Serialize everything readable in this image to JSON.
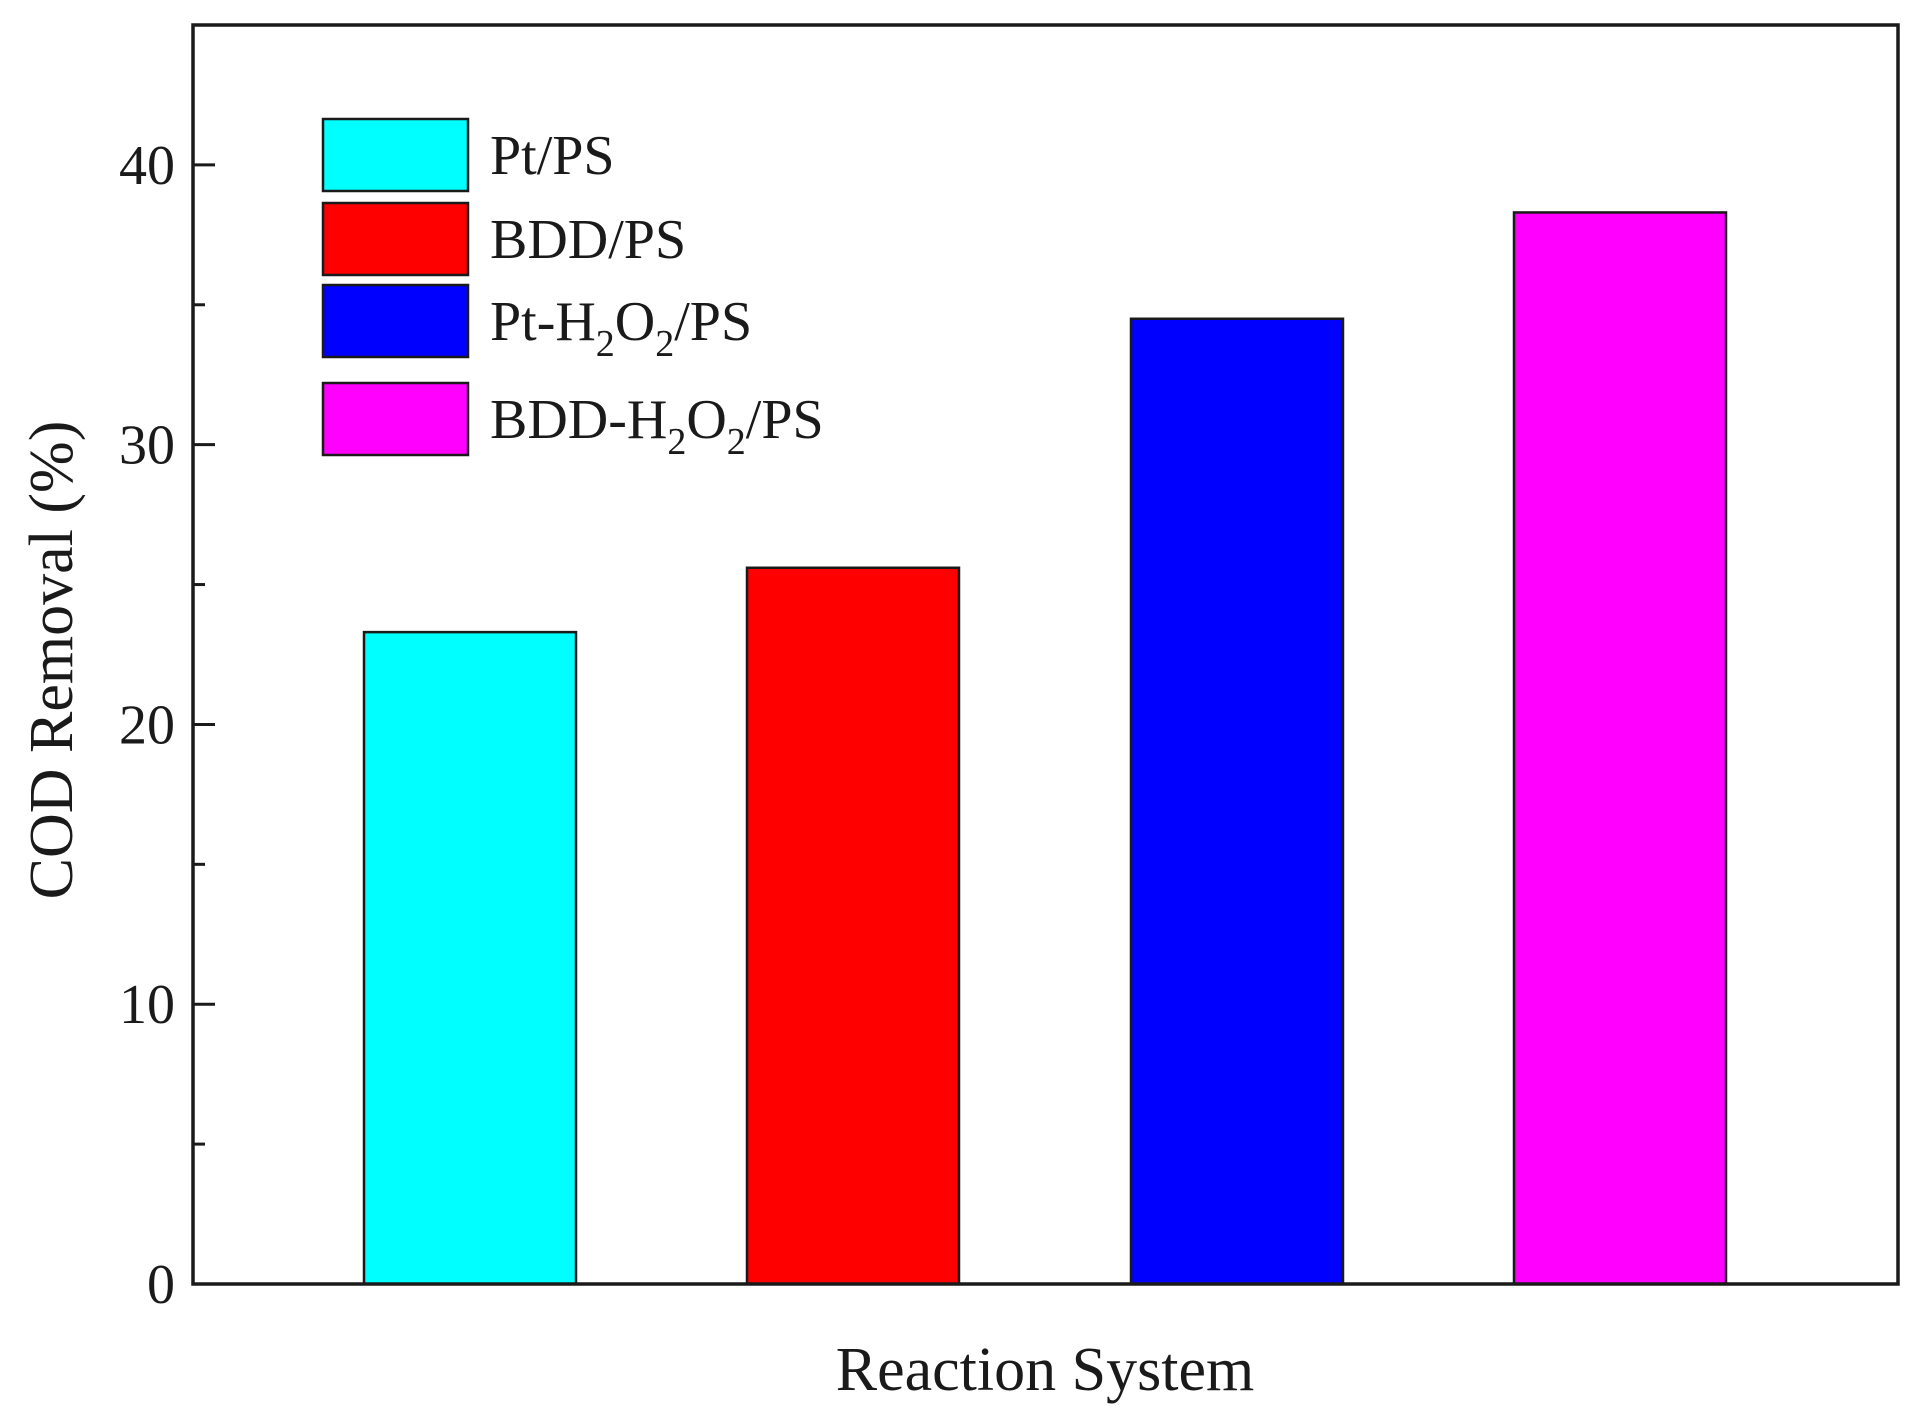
{
  "chart_data": {
    "type": "bar",
    "title": "",
    "xlabel": "Reaction System",
    "ylabel": "COD Removal (%)",
    "ylim": [
      0,
      45
    ],
    "yticks": [
      0,
      10,
      20,
      30,
      40
    ],
    "grid": false,
    "legend_position": "top-left",
    "categories": [
      "Pt/PS",
      "BDD/PS",
      "Pt-H2O2/PS",
      "BDD-H2O2/PS"
    ],
    "values": [
      23.3,
      25.6,
      34.5,
      38.3
    ],
    "colors": [
      "#00ffff",
      "#ff0000",
      "#0000ff",
      "#ff00ff"
    ],
    "legend": [
      {
        "parts": [
          {
            "t": "Pt/PS"
          }
        ]
      },
      {
        "parts": [
          {
            "t": "BDD/PS"
          }
        ]
      },
      {
        "parts": [
          {
            "t": "Pt-H"
          },
          {
            "t": "2",
            "sub": true
          },
          {
            "t": "O"
          },
          {
            "t": "2",
            "sub": true
          },
          {
            "t": "/PS"
          }
        ]
      },
      {
        "parts": [
          {
            "t": "BDD-H"
          },
          {
            "t": "2",
            "sub": true
          },
          {
            "t": "O"
          },
          {
            "t": "2",
            "sub": true
          },
          {
            "t": "/PS"
          }
        ]
      }
    ]
  }
}
